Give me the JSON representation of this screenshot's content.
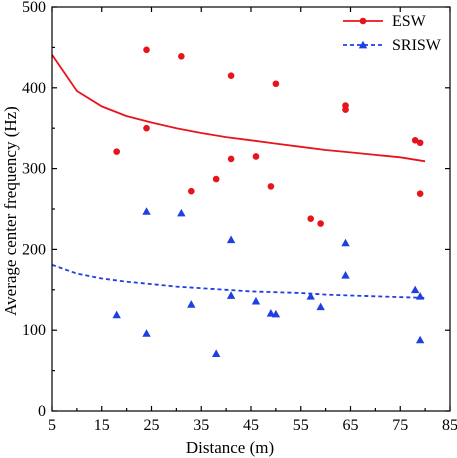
{
  "chart_data": {
    "type": "scatter",
    "title": "",
    "xlabel": "Distance (m)",
    "ylabel": "Average center frequency (Hz)",
    "xlim": [
      5,
      85
    ],
    "ylim": [
      0,
      500
    ],
    "xticks": [
      5,
      15,
      25,
      35,
      45,
      55,
      65,
      75,
      85
    ],
    "yticks": [
      0,
      100,
      200,
      300,
      400,
      500
    ],
    "grid": false,
    "legend_position": "top-right",
    "series": [
      {
        "name": "ESW",
        "color": "#e8141c",
        "marker": "circle",
        "fit_line": "solid",
        "points": [
          [
            18,
            321
          ],
          [
            24,
            447
          ],
          [
            24,
            350
          ],
          [
            31,
            439
          ],
          [
            33,
            272
          ],
          [
            38,
            287
          ],
          [
            41,
            415
          ],
          [
            41,
            312
          ],
          [
            46,
            315
          ],
          [
            49,
            278
          ],
          [
            50,
            405
          ],
          [
            57,
            238
          ],
          [
            59,
            232
          ],
          [
            64,
            378
          ],
          [
            64,
            373
          ],
          [
            78,
            335
          ],
          [
            79,
            332
          ],
          [
            79,
            269
          ]
        ],
        "fit": [
          [
            5,
            441
          ],
          [
            10,
            396
          ],
          [
            15,
            377
          ],
          [
            20,
            365
          ],
          [
            25,
            357
          ],
          [
            30,
            350
          ],
          [
            35,
            344
          ],
          [
            40,
            339
          ],
          [
            45,
            335
          ],
          [
            50,
            331
          ],
          [
            55,
            327
          ],
          [
            60,
            323
          ],
          [
            65,
            320
          ],
          [
            70,
            317
          ],
          [
            75,
            314
          ],
          [
            80,
            309
          ]
        ]
      },
      {
        "name": "SRISW",
        "color": "#1f3fe0",
        "marker": "triangle",
        "fit_line": "dashed",
        "points": [
          [
            18,
            119
          ],
          [
            24,
            96
          ],
          [
            24,
            247
          ],
          [
            31,
            245
          ],
          [
            33,
            132
          ],
          [
            38,
            71
          ],
          [
            41,
            212
          ],
          [
            41,
            143
          ],
          [
            46,
            136
          ],
          [
            49,
            121
          ],
          [
            50,
            120
          ],
          [
            57,
            142
          ],
          [
            59,
            129
          ],
          [
            64,
            208
          ],
          [
            64,
            168
          ],
          [
            78,
            150
          ],
          [
            79,
            142
          ],
          [
            79,
            88
          ]
        ],
        "fit": [
          [
            5,
            181
          ],
          [
            10,
            170
          ],
          [
            15,
            164
          ],
          [
            20,
            160
          ],
          [
            25,
            157
          ],
          [
            30,
            154
          ],
          [
            35,
            152
          ],
          [
            40,
            150
          ],
          [
            45,
            148
          ],
          [
            50,
            147
          ],
          [
            55,
            146
          ],
          [
            60,
            144
          ],
          [
            65,
            143
          ],
          [
            70,
            142
          ],
          [
            75,
            141
          ],
          [
            80,
            140
          ]
        ]
      }
    ]
  }
}
